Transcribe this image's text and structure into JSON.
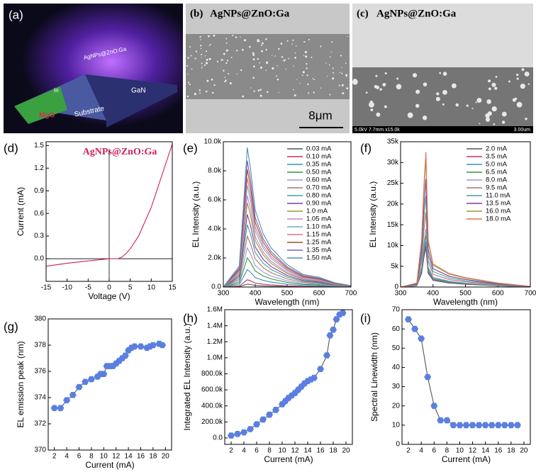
{
  "images": [
    {
      "label": "(a)",
      "texts": [
        "AgNPs@ZnO:Ga",
        "GaN",
        "MgO",
        "Substrate",
        "In"
      ]
    },
    {
      "label": "(b)",
      "title": "AgNPs@ZnO:Ga",
      "scale": "8μm"
    },
    {
      "label": "(c)",
      "title": "AgNPs@ZnO:Ga",
      "info": "5.0kV 7.7mm x15.0k",
      "scale": "3.00um"
    }
  ],
  "chart_data": [
    {
      "type": "line",
      "panel": "(d)",
      "x_label": "Voltage (V)",
      "y_label": "Current (mA)",
      "annotation": "AgNPs@ZnO:Ga",
      "annotation_color": "#d0205a",
      "x": [
        -15,
        -10,
        -5,
        0,
        2,
        3,
        4,
        5,
        7,
        10,
        15
      ],
      "values": [
        -0.1,
        -0.06,
        -0.03,
        0,
        0,
        0.02,
        0.07,
        0.13,
        0.3,
        0.68,
        1.52
      ],
      "color": "#d0205a",
      "xlim": [
        -15,
        15
      ],
      "xticks": [
        -15,
        -10,
        -5,
        0,
        5,
        10,
        15
      ],
      "ylim": [
        -0.3,
        1.55
      ],
      "yticks": [
        {
          "value": 0,
          "label": "0.0"
        },
        0.3,
        0.6,
        0.9,
        1.2,
        1.5
      ]
    },
    {
      "type": "line",
      "panel": "(e)",
      "x_label": "Wavelength (nm)",
      "y_label": "EL Intensity (a.u.)",
      "legend": "upper right",
      "x": [
        300,
        350,
        365,
        375,
        385,
        400,
        425,
        450,
        500,
        550,
        600,
        650,
        700
      ],
      "series": [
        {
          "name": "0.03 mA",
          "color": "#555555",
          "values": [
            0,
            30,
            130,
            200,
            170,
            110,
            76,
            56,
            32,
            18,
            14,
            6,
            2
          ]
        },
        {
          "name": "0.10 mA",
          "color": "#c03060",
          "values": [
            0,
            75,
            325,
            500,
            425,
            275,
            190,
            140,
            80,
            45,
            35,
            15,
            5
          ]
        },
        {
          "name": "0.35 mA",
          "color": "#3a8fbf",
          "values": [
            0,
            180,
            780,
            1200,
            1020,
            660,
            456,
            336,
            192,
            108,
            84,
            36,
            12
          ]
        },
        {
          "name": "0.50 mA",
          "color": "#2e9a3a",
          "values": [
            0,
            300,
            1300,
            2000,
            1700,
            1100,
            760,
            560,
            320,
            180,
            140,
            60,
            20
          ]
        },
        {
          "name": "0.60 mA",
          "color": "#9a9ad0",
          "values": [
            0,
            405,
            1755,
            2700,
            2295,
            1485,
            1026,
            756,
            432,
            243,
            189,
            81,
            27
          ]
        },
        {
          "name": "0.70 mA",
          "color": "#b07070",
          "values": [
            0,
            525,
            2275,
            3500,
            2975,
            1925,
            1330,
            980,
            560,
            315,
            245,
            105,
            35
          ]
        },
        {
          "name": "0.80 mA",
          "color": "#40a0a0",
          "values": [
            0,
            645,
            2795,
            4300,
            3655,
            2365,
            1634,
            1204,
            688,
            387,
            301,
            129,
            43
          ]
        },
        {
          "name": "0.90 mA",
          "color": "#7b3fa0",
          "values": [
            0,
            750,
            3250,
            5000,
            4250,
            2750,
            1900,
            1400,
            800,
            450,
            350,
            150,
            50
          ]
        },
        {
          "name": "1.0 mA",
          "color": "#9a9a3a",
          "values": [
            0,
            870,
            3770,
            5800,
            4930,
            3190,
            2204,
            1624,
            928,
            522,
            406,
            174,
            58
          ]
        },
        {
          "name": "1.05 mA",
          "color": "#d080c0",
          "values": [
            0,
            945,
            4095,
            6300,
            5355,
            3465,
            2394,
            1764,
            1008,
            567,
            441,
            189,
            63
          ]
        },
        {
          "name": "1.10 mA",
          "color": "#6fb0d0",
          "values": [
            0,
            1050,
            4550,
            7000,
            5950,
            3850,
            2660,
            1960,
            1120,
            630,
            490,
            210,
            70
          ]
        },
        {
          "name": "1.15 mA",
          "color": "#e07090",
          "values": [
            0,
            1125,
            4875,
            7500,
            6375,
            4125,
            2850,
            2100,
            1200,
            675,
            525,
            225,
            75
          ]
        },
        {
          "name": "1.25 mA",
          "color": "#a05020",
          "values": [
            0,
            1215,
            5265,
            8100,
            6885,
            4455,
            3078,
            2268,
            1296,
            729,
            567,
            243,
            81
          ]
        },
        {
          "name": "1.35 mA",
          "color": "#8060c0",
          "values": [
            0,
            1305,
            5655,
            8700,
            7395,
            4785,
            3306,
            2436,
            1392,
            783,
            609,
            261,
            87
          ]
        },
        {
          "name": "1.50 mA",
          "color": "#5090b0",
          "values": [
            0,
            1440,
            6240,
            9600,
            8160,
            5280,
            3648,
            2688,
            1536,
            864,
            672,
            288,
            96
          ]
        }
      ],
      "xlim": [
        300,
        700
      ],
      "xticks": [
        300,
        400,
        500,
        600,
        700
      ],
      "ylim": [
        0,
        10000
      ],
      "yticks": [
        {
          "value": 0,
          "label": "0.0"
        },
        {
          "value": 2000,
          "label": "2.0k"
        },
        {
          "value": 4000,
          "label": "4.0k"
        },
        {
          "value": 6000,
          "label": "6.0k"
        },
        {
          "value": 8000,
          "label": "8.0k"
        },
        {
          "value": 10000,
          "label": "10.0k"
        }
      ]
    },
    {
      "type": "line",
      "panel": "(f)",
      "x_label": "Wavelength (nm)",
      "y_label": "EL Intensity (a.u.)",
      "legend": "upper right",
      "x": [
        300,
        350,
        365,
        372,
        378,
        385,
        400,
        450,
        500,
        600,
        700
      ],
      "series": [
        {
          "name": "2.0 mA",
          "color": "#555555",
          "values": [
            0,
            285,
            3325,
            7125,
            9500,
            3325,
            1615,
            950,
            665,
            285,
            48
          ]
        },
        {
          "name": "3.5 mA",
          "color": "#c03060",
          "values": [
            0,
            300,
            3500,
            7500,
            10000,
            3500,
            1700,
            1000,
            700,
            300,
            50
          ]
        },
        {
          "name": "5.0 mA",
          "color": "#3a8fbf",
          "values": [
            0,
            330,
            3850,
            8250,
            11000,
            3850,
            1870,
            1100,
            770,
            330,
            55
          ]
        },
        {
          "name": "6.5 mA",
          "color": "#2e9a3a",
          "values": [
            0,
            375,
            4375,
            9375,
            12500,
            4375,
            2125,
            1250,
            875,
            375,
            63
          ]
        },
        {
          "name": "8.0 mA",
          "color": "#9a9ad0",
          "values": [
            0,
            420,
            4900,
            10500,
            14000,
            4900,
            2380,
            1400,
            980,
            420,
            70
          ]
        },
        {
          "name": "9.5 mA",
          "color": "#b07070",
          "values": [
            0,
            540,
            6300,
            13500,
            18000,
            6300,
            3060,
            1800,
            1260,
            540,
            90
          ]
        },
        {
          "name": "11.0 mA",
          "color": "#40a0a0",
          "values": [
            0,
            660,
            7700,
            16500,
            22000,
            7700,
            3740,
            2200,
            1540,
            660,
            110
          ]
        },
        {
          "name": "13.5 mA",
          "color": "#7b3fa0",
          "values": [
            0,
            780,
            9100,
            19500,
            26000,
            9100,
            4420,
            2600,
            1820,
            780,
            130
          ]
        },
        {
          "name": "16.0 mA",
          "color": "#9a9a3a",
          "values": [
            0,
            930,
            10850,
            23250,
            31000,
            10850,
            5270,
            3100,
            2170,
            930,
            155
          ]
        },
        {
          "name": "18.0 mA",
          "color": "#e07050",
          "values": [
            0,
            975,
            11375,
            24375,
            32500,
            11375,
            5525,
            3250,
            2275,
            975,
            163
          ]
        }
      ],
      "xlim": [
        300,
        700
      ],
      "xticks": [
        300,
        400,
        500,
        600,
        700
      ],
      "ylim": [
        0,
        35000
      ],
      "yticks": [
        0,
        {
          "value": 5000,
          "label": "5k"
        },
        {
          "value": 10000,
          "label": "10k"
        },
        {
          "value": 15000,
          "label": "15k"
        },
        {
          "value": 20000,
          "label": "20k"
        },
        {
          "value": 25000,
          "label": "25k"
        },
        {
          "value": 30000,
          "label": "30k"
        },
        {
          "value": 35000,
          "label": "35k"
        }
      ]
    },
    {
      "type": "line",
      "panel": "(g)",
      "x_label": "Current (mA)",
      "y_label": "EL emission peak (nm)",
      "markers": true,
      "color": "#5b7fe0",
      "x": [
        2,
        3,
        4,
        5,
        6,
        7,
        8,
        9,
        9.5,
        10,
        10.5,
        11,
        11.5,
        12,
        12.5,
        13,
        13.5,
        14,
        14.5,
        15,
        16,
        17,
        17.5,
        18,
        19,
        19.5
      ],
      "values": [
        373.2,
        373.2,
        373.8,
        374.2,
        374.8,
        375.2,
        375.4,
        375.6,
        375.8,
        375.8,
        376.4,
        376.4,
        376.4,
        376.6,
        376.8,
        377.0,
        377.2,
        377.6,
        377.8,
        377.9,
        377.9,
        377.8,
        377.9,
        378.0,
        378.1,
        378.0
      ],
      "xlim": [
        1,
        21
      ],
      "xticks": [
        2,
        4,
        6,
        8,
        10,
        12,
        14,
        16,
        18,
        20
      ],
      "ylim": [
        370,
        380
      ],
      "yticks": [
        370,
        372,
        374,
        376,
        378,
        380
      ]
    },
    {
      "type": "line",
      "panel": "(h)",
      "x_label": "Current (mA)",
      "y_label": "Integrated EL Intensity (a.u.)",
      "markers": true,
      "color": "#5b7fe0",
      "x": [
        2,
        3,
        4,
        5,
        6,
        7,
        8,
        9,
        10,
        10.5,
        11,
        11.5,
        12,
        12.5,
        13,
        13.5,
        14,
        14.5,
        15,
        16,
        17,
        17.5,
        18,
        18.5,
        19,
        19.5
      ],
      "values": [
        30000,
        50000,
        70000,
        110000,
        170000,
        230000,
        290000,
        350000,
        420000,
        460000,
        500000,
        530000,
        560000,
        600000,
        640000,
        680000,
        710000,
        730000,
        750000,
        860000,
        1030000,
        1280000,
        1350000,
        1480000,
        1540000,
        1560000
      ],
      "xlim": [
        1,
        21
      ],
      "xticks": [
        2,
        4,
        6,
        8,
        10,
        12,
        14,
        16,
        18,
        20
      ],
      "ylim": [
        -80000,
        1600000
      ],
      "yticks": [
        {
          "value": 0,
          "label": "0.0"
        },
        {
          "value": 200000,
          "label": "200.0k"
        },
        {
          "value": 400000,
          "label": "400.0k"
        },
        {
          "value": 600000,
          "label": "600.0k"
        },
        {
          "value": 800000,
          "label": "800.0k"
        },
        {
          "value": 1000000,
          "label": "1.0M"
        },
        {
          "value": 1200000,
          "label": "1.2M"
        },
        {
          "value": 1400000,
          "label": "1.4M"
        },
        {
          "value": 1600000,
          "label": "1.6M"
        }
      ]
    },
    {
      "type": "line",
      "panel": "(i)",
      "x_label": "Current (mA)",
      "y_label": "Spectral Linewidth (nm)",
      "markers": true,
      "color": "#5b7fe0",
      "x": [
        2,
        3,
        4,
        5,
        6,
        7,
        8,
        9,
        10,
        11,
        12,
        13,
        14,
        15,
        16,
        17,
        18,
        19
      ],
      "values": [
        65,
        60,
        55,
        35,
        20,
        12.5,
        12.5,
        10,
        10,
        10,
        10,
        10,
        10,
        10,
        10,
        10,
        10,
        10
      ],
      "xlim": [
        1,
        21
      ],
      "xticks": [
        2,
        4,
        6,
        8,
        10,
        12,
        14,
        16,
        18,
        20
      ],
      "ylim": [
        0,
        70
      ],
      "yticks": [
        0,
        10,
        20,
        30,
        40,
        50,
        60,
        70
      ]
    }
  ]
}
